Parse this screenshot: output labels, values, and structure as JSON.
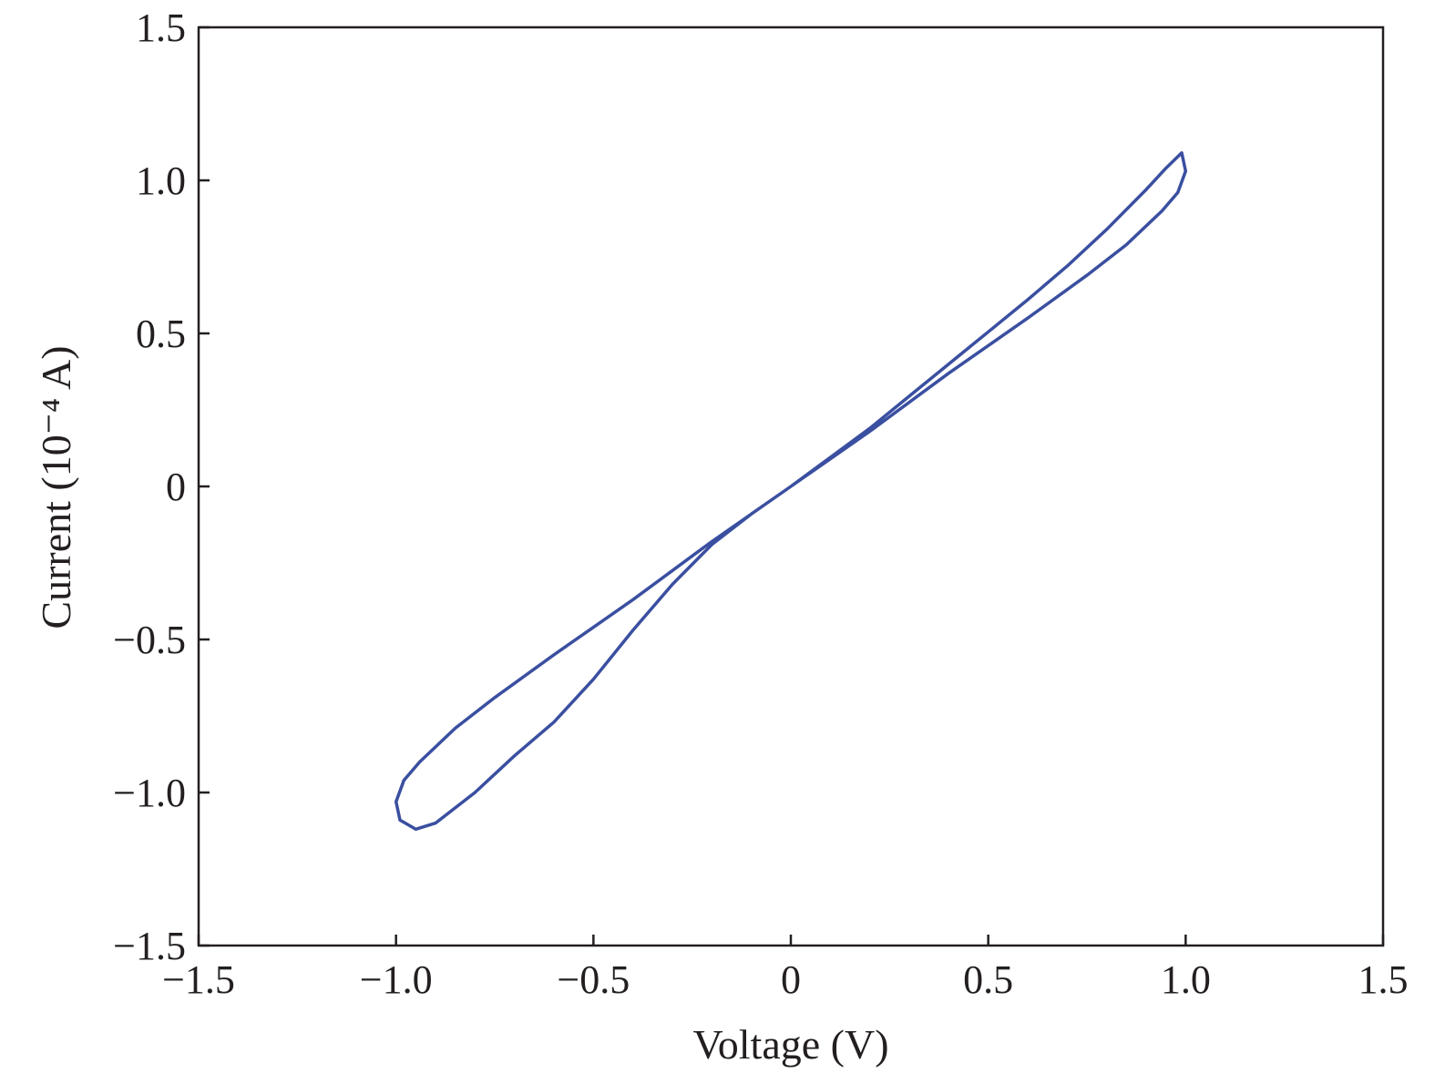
{
  "colors": {
    "series": "#3a4fa0",
    "axis": "#231f20",
    "background": "#ffffff"
  },
  "chart_data": {
    "type": "line",
    "title": "",
    "xlabel": "Voltage (V)",
    "ylabel": "Current (10⁻⁴ A)",
    "xlim": [
      -1.5,
      1.5
    ],
    "ylim": [
      -1.5,
      1.5
    ],
    "grid": false,
    "legend": "none",
    "x_ticks": [
      -1.5,
      -1.0,
      -0.5,
      0,
      0.5,
      1.0,
      1.5
    ],
    "x_tick_labels": [
      "−1.5",
      "−1.0",
      "−0.5",
      "0",
      "0.5",
      "1.0",
      "1.5"
    ],
    "y_ticks": [
      -1.5,
      -1.0,
      -0.5,
      0,
      0.5,
      1.0,
      1.5
    ],
    "y_tick_labels": [
      "−1.5",
      "−1.0",
      "−0.5",
      "0",
      "0.5",
      "1.0",
      "1.5"
    ],
    "series": [
      {
        "x": [
          0,
          0.1,
          0.2,
          0.3,
          0.4,
          0.5,
          0.6,
          0.7,
          0.8,
          0.9,
          0.95,
          0.99,
          1.0,
          0.98,
          0.94,
          0.85,
          0.75,
          0.6,
          0.4,
          0.2,
          0,
          -0.2,
          -0.4,
          -0.6,
          -0.75,
          -0.85,
          -0.94,
          -0.98,
          -1.0,
          -0.99,
          -0.95,
          -0.9,
          -0.8,
          -0.7,
          -0.6,
          -0.5,
          -0.4,
          -0.3,
          -0.2,
          -0.1,
          0
        ],
        "y": [
          0,
          0.095,
          0.19,
          0.295,
          0.4,
          0.505,
          0.61,
          0.72,
          0.84,
          0.97,
          1.04,
          1.09,
          1.03,
          0.96,
          0.9,
          0.79,
          0.69,
          0.55,
          0.37,
          0.18,
          0,
          -0.18,
          -0.37,
          -0.55,
          -0.69,
          -0.79,
          -0.9,
          -0.96,
          -1.03,
          -1.09,
          -1.12,
          -1.1,
          -1.0,
          -0.88,
          -0.77,
          -0.63,
          -0.47,
          -0.32,
          -0.19,
          -0.09,
          0
        ]
      }
    ]
  }
}
